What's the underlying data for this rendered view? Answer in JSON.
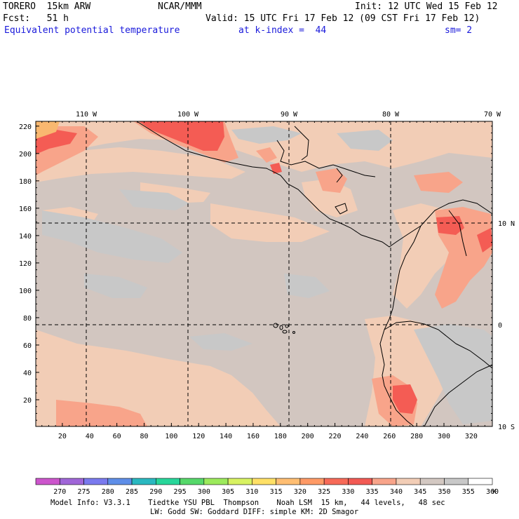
{
  "header": {
    "model": "TORERO  15km ARW",
    "center": "NCAR/MMM",
    "init": "Init: 12 UTC Wed 15 Feb 12",
    "fcst": "Fcst:   51 h",
    "valid": "Valid: 15 UTC Fri 17 Feb 12 (09 CST Fri 17 Feb 12)",
    "field": "Equivalent potential temperature",
    "level": "at k-index =  44",
    "smooth": "sm= 2"
  },
  "map": {
    "lon_labels": [
      "110 W",
      "100 W",
      "90 W",
      "80 W",
      "70 W"
    ],
    "lat_labels": [
      "10 N",
      "0",
      "10 S"
    ],
    "x_ticks": [
      "20",
      "40",
      "60",
      "80",
      "100",
      "120",
      "140",
      "160",
      "180",
      "200",
      "220",
      "240",
      "260",
      "280",
      "300",
      "320"
    ],
    "y_ticks": [
      "20",
      "40",
      "60",
      "80",
      "100",
      "120",
      "140",
      "160",
      "180",
      "200",
      "220"
    ]
  },
  "colorbar": {
    "labels": [
      "270",
      "275",
      "280",
      "285",
      "290",
      "295",
      "300",
      "305",
      "310",
      "315",
      "320",
      "325",
      "330",
      "335",
      "340",
      "345",
      "350",
      "355",
      "360"
    ],
    "unit": "K",
    "colors": [
      "#cc55cc",
      "#a066d8",
      "#7a7aee",
      "#5e8ee8",
      "#2ab8c0",
      "#28d69a",
      "#56d86a",
      "#9cea5c",
      "#d8f262",
      "#ffe066",
      "#ffbe72",
      "#ff9a66",
      "#f76a58",
      "#f25a54",
      "#f8a48a",
      "#f2cdb6",
      "#d3c8c2",
      "#c8c8c8",
      "#ffffff"
    ]
  },
  "footer": {
    "line1": "Model Info: V3.3.1    Tiedtke YSU PBL  Thompson    Noah LSM  15 km,   44 levels,   48 sec",
    "line2": "LW: Godd SW: Goddard DIFF: simple KM: 2D Smagor"
  }
}
